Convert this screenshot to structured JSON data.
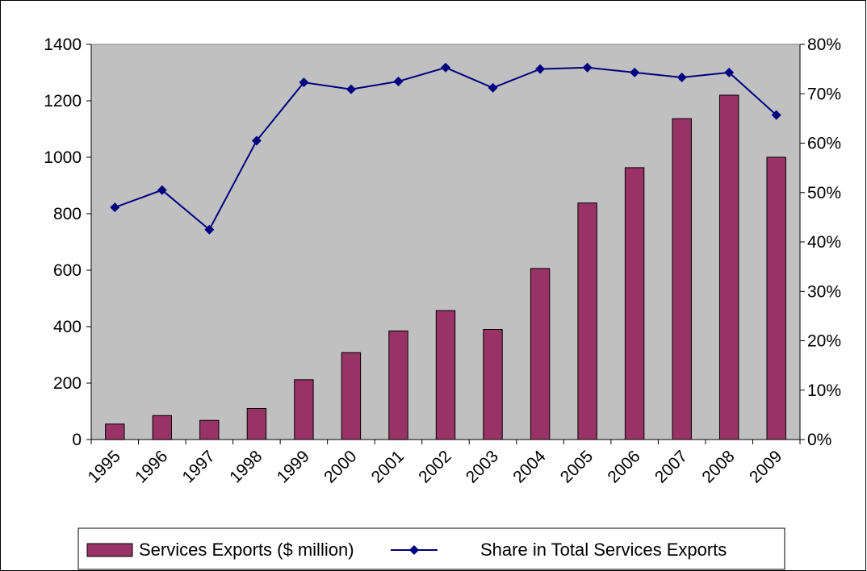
{
  "chart_data": {
    "type": "bar",
    "categories": [
      "1995",
      "1996",
      "1997",
      "1998",
      "1999",
      "2000",
      "2001",
      "2002",
      "2003",
      "2004",
      "2005",
      "2006",
      "2007",
      "2008",
      "2009"
    ],
    "series": [
      {
        "name": "Services Exports ($ million)",
        "type": "bar",
        "axis": "left",
        "color": "#993366",
        "values": [
          55,
          85,
          68,
          110,
          212,
          308,
          385,
          457,
          390,
          606,
          838,
          963,
          1137,
          1220,
          1000
        ]
      },
      {
        "name": "Share in Total Services Exports",
        "type": "line",
        "axis": "right",
        "color": "#000080",
        "values": [
          0.47,
          0.505,
          0.425,
          0.605,
          0.723,
          0.709,
          0.725,
          0.753,
          0.712,
          0.75,
          0.753,
          0.743,
          0.733,
          0.743,
          0.657
        ]
      }
    ],
    "y_left": {
      "min": 0,
      "max": 1400,
      "step": 200,
      "tick_labels": [
        "0",
        "200",
        "400",
        "600",
        "800",
        "1000",
        "1200",
        "1400"
      ]
    },
    "y_right": {
      "min": 0,
      "max": 0.8,
      "step": 0.1,
      "tick_labels": [
        "0%",
        "10%",
        "20%",
        "30%",
        "40%",
        "50%",
        "60%",
        "70%",
        "80%"
      ]
    },
    "title": "",
    "xlabel": "",
    "ylabel": "",
    "grid": false,
    "legend": "bottom",
    "colors": {
      "plot_background": "#c0c0c0",
      "bar": "#993366",
      "line": "#000080"
    }
  }
}
